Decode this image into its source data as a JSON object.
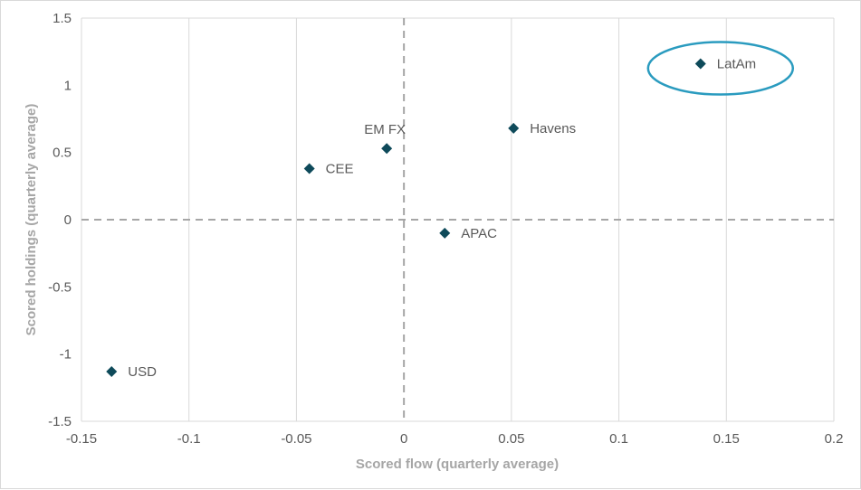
{
  "chart_data": {
    "type": "scatter",
    "title": "",
    "xlabel": "Scored flow (quarterly average)",
    "ylabel": "Scored holdings (quarterly average)",
    "xlim": [
      -0.15,
      0.2
    ],
    "ylim": [
      -1.5,
      1.5
    ],
    "x_ticks": [
      -0.15,
      -0.1,
      -0.05,
      0,
      0.05,
      0.1,
      0.15,
      0.2
    ],
    "x_tick_labels": [
      "-0.15",
      "-0.1",
      "-0.05",
      "0",
      "0.05",
      "0.1",
      "0.15",
      "0.2"
    ],
    "y_ticks": [
      1.5,
      1,
      0.5,
      0,
      -0.5,
      -1,
      -1.5
    ],
    "y_tick_labels": [
      "1.5",
      "1",
      "0.5",
      "0",
      "-0.5",
      "-1",
      "-1.5"
    ],
    "grid": "vertical",
    "zero_lines": "dashed",
    "points": [
      {
        "name": "LatAm",
        "x": 0.138,
        "y": 1.16,
        "label_pos": "right",
        "highlighted": true
      },
      {
        "name": "Havens",
        "x": 0.051,
        "y": 0.68,
        "label_pos": "right"
      },
      {
        "name": "EM FX",
        "x": -0.008,
        "y": 0.53,
        "label_pos": "above"
      },
      {
        "name": "CEE",
        "x": -0.044,
        "y": 0.38,
        "label_pos": "right"
      },
      {
        "name": "APAC",
        "x": 0.019,
        "y": -0.1,
        "label_pos": "right"
      },
      {
        "name": "USD",
        "x": -0.136,
        "y": -1.13,
        "label_pos": "right"
      }
    ],
    "colors": {
      "marker": "#0e4a5a",
      "highlight": "#2a9bbf",
      "grid": "#d9d9d9",
      "zero_line": "#a6a6a6"
    }
  }
}
